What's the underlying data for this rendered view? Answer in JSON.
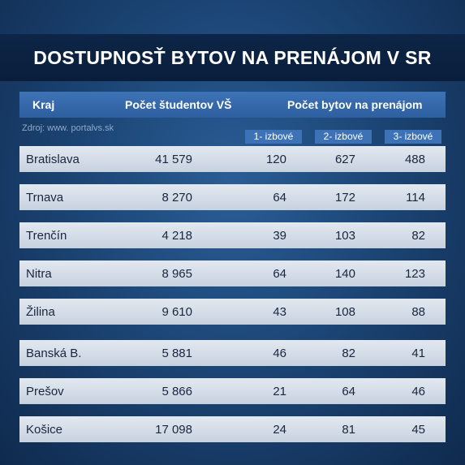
{
  "title": "DOSTUPNOSŤ BYTOV NA PRENÁJOM V SR",
  "header": {
    "kraj": "Kraj",
    "students": "Počet študentov VŠ",
    "rentals": "Počet bytov na prenájom"
  },
  "source": "Zdroj: www. portalvs.sk",
  "subheaders": [
    "1- izbové",
    "2- izbové",
    "3- izbové"
  ],
  "rows": [
    {
      "kraj": "Bratislava",
      "students": "41 579",
      "r1": "120",
      "r2": "627",
      "r3": "488"
    },
    {
      "kraj": "Trnava",
      "students": "8 270",
      "r1": "64",
      "r2": "172",
      "r3": "114"
    },
    {
      "kraj": "Trenčín",
      "students": "4 218",
      "r1": "39",
      "r2": "103",
      "r3": "82"
    },
    {
      "kraj": "Nitra",
      "students": "8 965",
      "r1": "64",
      "r2": "140",
      "r3": "123"
    },
    {
      "kraj": "Žilina",
      "students": "9 610",
      "r1": "43",
      "r2": "108",
      "r3": "88"
    },
    {
      "kraj": "Banská B.",
      "students": "5 881",
      "r1": "46",
      "r2": "82",
      "r3": "41"
    },
    {
      "kraj": "Prešov",
      "students": "5 866",
      "r1": "21",
      "r2": "64",
      "r3": "46"
    },
    {
      "kraj": "Košice",
      "students": "17 098",
      "r1": "24",
      "r2": "81",
      "r3": "45"
    }
  ]
}
